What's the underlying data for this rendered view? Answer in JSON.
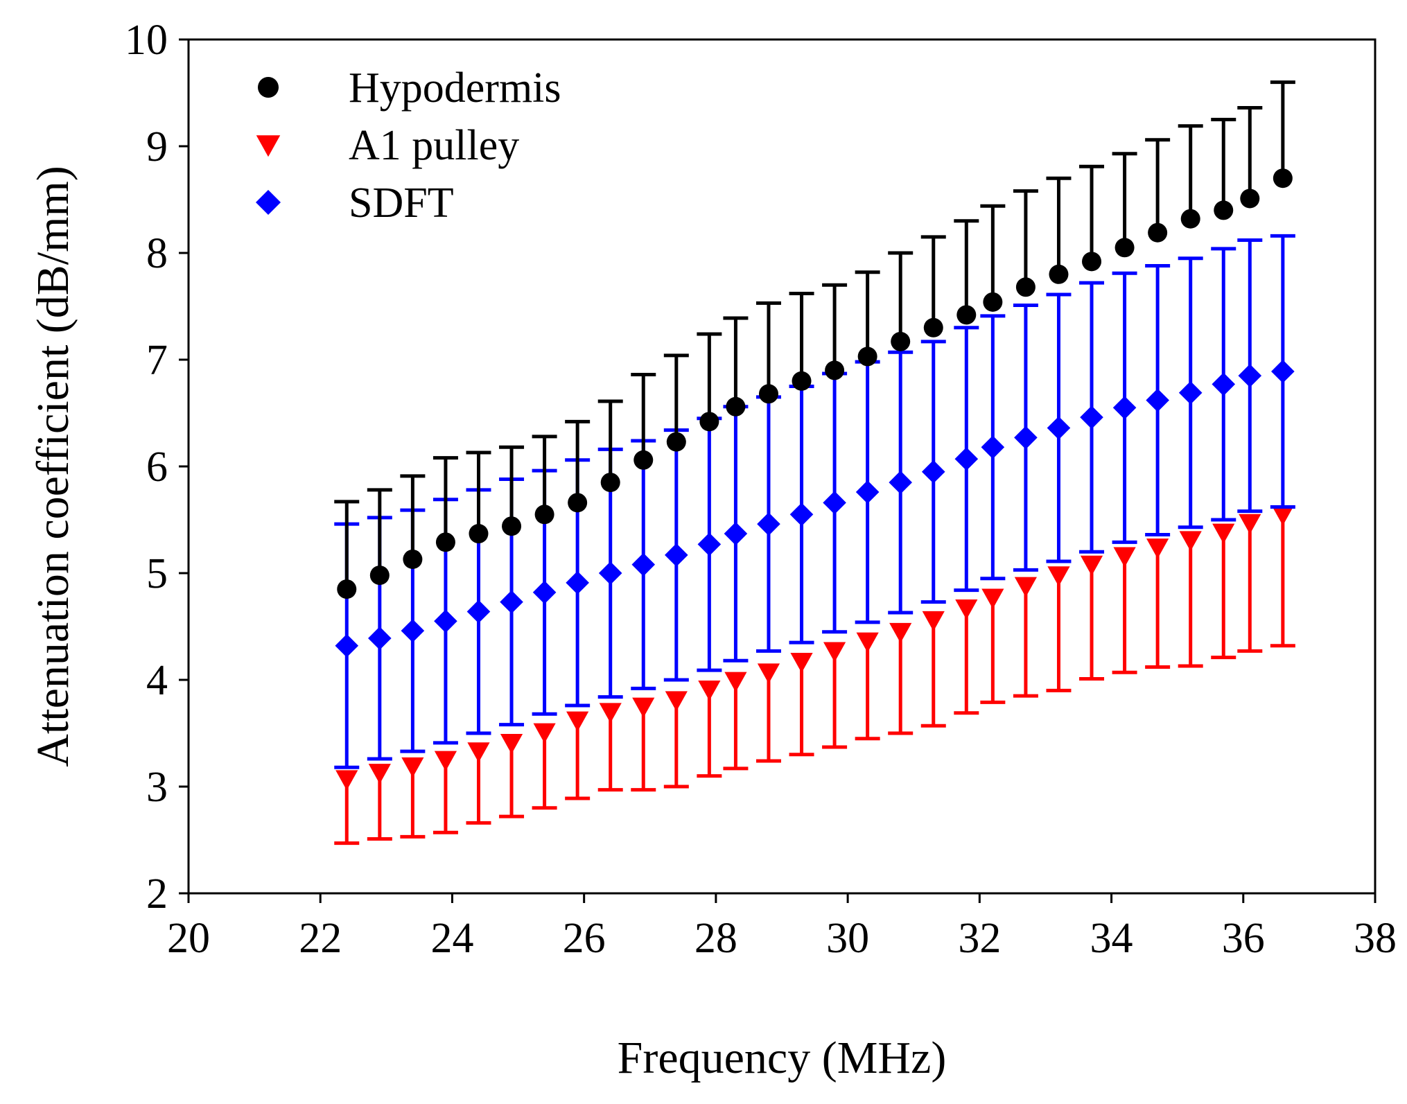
{
  "chart_data": {
    "type": "scatter",
    "title": "",
    "xlabel": "Frequency (MHz)",
    "ylabel": "Attenuation coefficient (dB/mm)",
    "xlim": [
      20,
      38
    ],
    "ylim": [
      2,
      10
    ],
    "xticks": [
      20,
      22,
      24,
      26,
      28,
      30,
      32,
      34,
      36,
      38
    ],
    "yticks": [
      2,
      3,
      4,
      5,
      6,
      7,
      8,
      9,
      10
    ],
    "grid": false,
    "legend_position": "top-left",
    "x": [
      22.4,
      22.9,
      23.4,
      23.9,
      24.4,
      24.9,
      25.4,
      25.9,
      26.4,
      26.9,
      27.4,
      27.9,
      28.3,
      28.8,
      29.3,
      29.8,
      30.3,
      30.8,
      31.3,
      31.8,
      32.2,
      32.7,
      33.2,
      33.7,
      34.2,
      34.7,
      35.2,
      35.7,
      36.1,
      36.6
    ],
    "series": [
      {
        "name": "Hypodermis",
        "marker": "circle",
        "color": "#000000",
        "error_bar": "upper",
        "values": [
          4.85,
          4.98,
          5.13,
          5.29,
          5.37,
          5.44,
          5.55,
          5.66,
          5.85,
          6.06,
          6.23,
          6.42,
          6.56,
          6.68,
          6.8,
          6.9,
          7.03,
          7.17,
          7.3,
          7.42,
          7.54,
          7.68,
          7.8,
          7.92,
          8.05,
          8.19,
          8.32,
          8.4,
          8.51,
          8.7
        ],
        "errors": [
          0.82,
          0.8,
          0.78,
          0.79,
          0.76,
          0.74,
          0.73,
          0.76,
          0.76,
          0.8,
          0.81,
          0.82,
          0.83,
          0.85,
          0.82,
          0.8,
          0.79,
          0.83,
          0.85,
          0.88,
          0.9,
          0.9,
          0.9,
          0.89,
          0.88,
          0.87,
          0.87,
          0.85,
          0.85,
          0.9
        ]
      },
      {
        "name": "A1 pulley",
        "marker": "triangle-down",
        "color": "#ff0000",
        "error_bar": "lower",
        "values": [
          3.07,
          3.13,
          3.19,
          3.25,
          3.33,
          3.41,
          3.51,
          3.62,
          3.7,
          3.75,
          3.81,
          3.91,
          3.99,
          4.07,
          4.17,
          4.27,
          4.36,
          4.45,
          4.56,
          4.67,
          4.77,
          4.88,
          4.98,
          5.08,
          5.16,
          5.24,
          5.31,
          5.38,
          5.47,
          5.55
        ],
        "errors": [
          0.6,
          0.62,
          0.66,
          0.68,
          0.67,
          0.69,
          0.71,
          0.73,
          0.73,
          0.78,
          0.81,
          0.81,
          0.82,
          0.83,
          0.87,
          0.9,
          0.91,
          0.95,
          0.99,
          0.98,
          0.98,
          1.03,
          1.08,
          1.07,
          1.09,
          1.12,
          1.18,
          1.17,
          1.2,
          1.23
        ]
      },
      {
        "name": "SDFT",
        "marker": "diamond",
        "color": "#0000ff",
        "error_bar": "both",
        "values": [
          4.32,
          4.39,
          4.46,
          4.55,
          4.64,
          4.73,
          4.82,
          4.91,
          5.0,
          5.08,
          5.17,
          5.27,
          5.37,
          5.46,
          5.55,
          5.66,
          5.76,
          5.85,
          5.95,
          6.07,
          6.18,
          6.27,
          6.36,
          6.46,
          6.55,
          6.62,
          6.69,
          6.77,
          6.85,
          6.89
        ],
        "errors": [
          1.14,
          1.13,
          1.13,
          1.14,
          1.14,
          1.15,
          1.14,
          1.15,
          1.16,
          1.16,
          1.17,
          1.18,
          1.19,
          1.19,
          1.2,
          1.21,
          1.22,
          1.22,
          1.22,
          1.23,
          1.23,
          1.24,
          1.25,
          1.26,
          1.26,
          1.26,
          1.26,
          1.27,
          1.27,
          1.27
        ]
      }
    ]
  }
}
